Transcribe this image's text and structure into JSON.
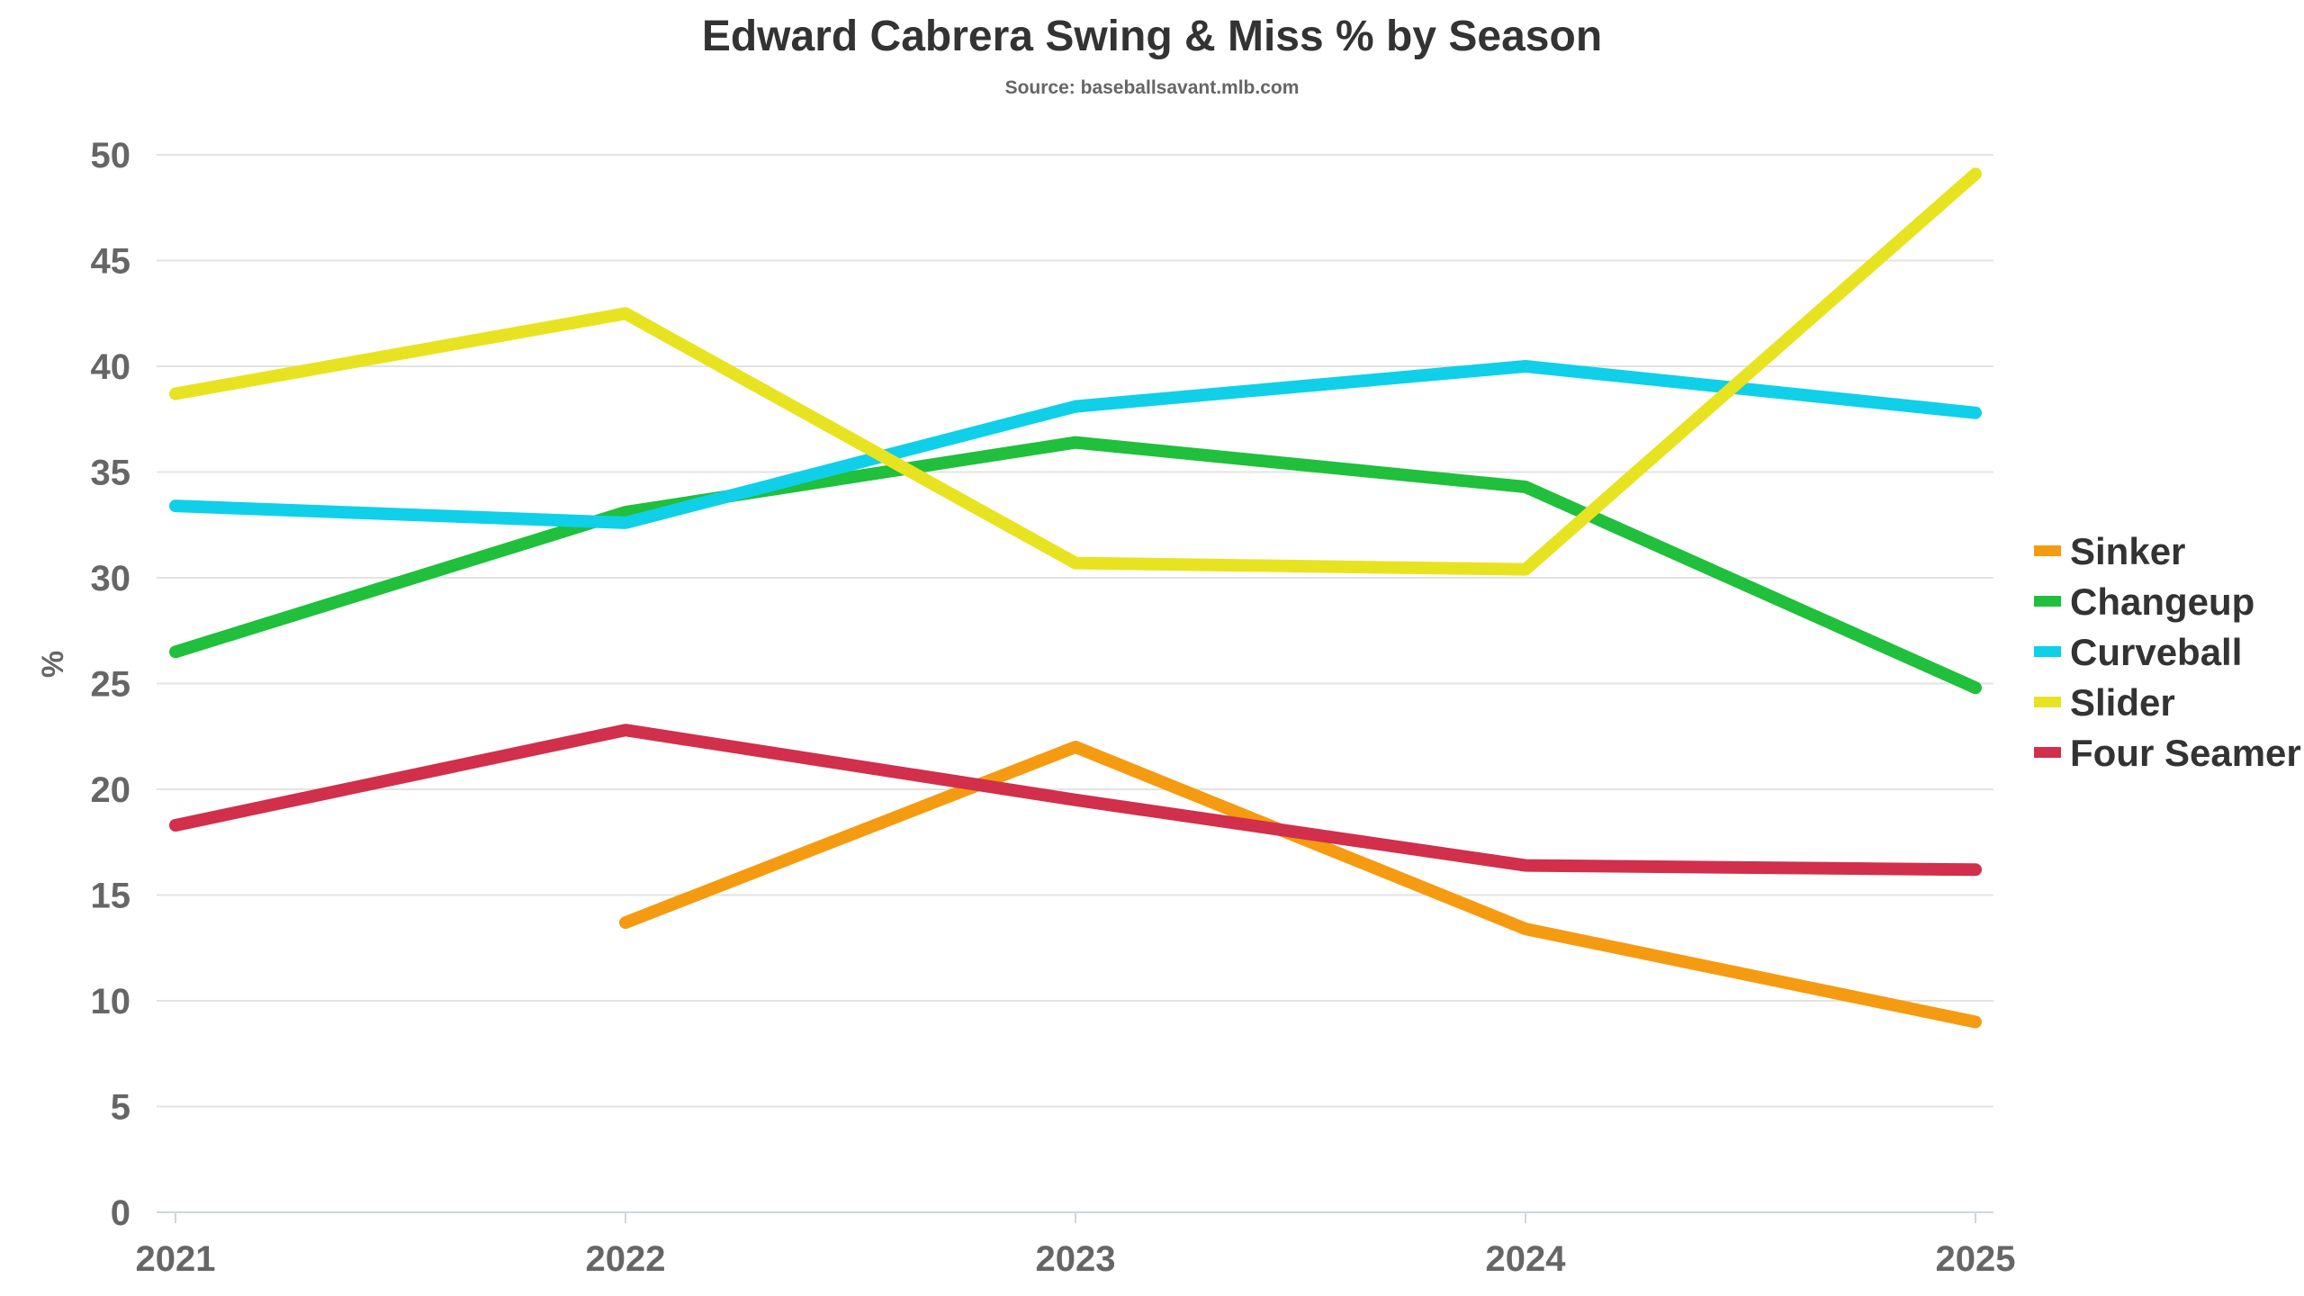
{
  "chart_data": {
    "type": "line",
    "title": "Edward Cabrera Swing & Miss % by Season",
    "subtitle": "Source: baseballsavant.mlb.com",
    "xlabel": "",
    "ylabel": "%",
    "categories": [
      "2021",
      "2022",
      "2023",
      "2024",
      "2025"
    ],
    "ylim": [
      0,
      50
    ],
    "yticks": [
      0,
      5,
      10,
      15,
      20,
      25,
      30,
      35,
      40,
      45,
      50
    ],
    "grid": true,
    "legend_position": "right",
    "series": [
      {
        "name": "Sinker",
        "color": "#f59b12",
        "values": [
          null,
          13.7,
          22.0,
          13.4,
          9.0
        ]
      },
      {
        "name": "Changeup",
        "color": "#20bf3c",
        "values": [
          26.5,
          33.1,
          36.4,
          34.3,
          24.8
        ]
      },
      {
        "name": "Curveball",
        "color": "#0fd0e8",
        "values": [
          33.4,
          32.6,
          38.1,
          40.0,
          37.8
        ]
      },
      {
        "name": "Slider",
        "color": "#e8e321",
        "values": [
          38.7,
          42.5,
          30.7,
          30.4,
          49.1
        ]
      },
      {
        "name": "Four Seamer",
        "color": "#d12f4b",
        "values": [
          18.3,
          22.8,
          19.5,
          16.4,
          16.2
        ]
      }
    ]
  }
}
